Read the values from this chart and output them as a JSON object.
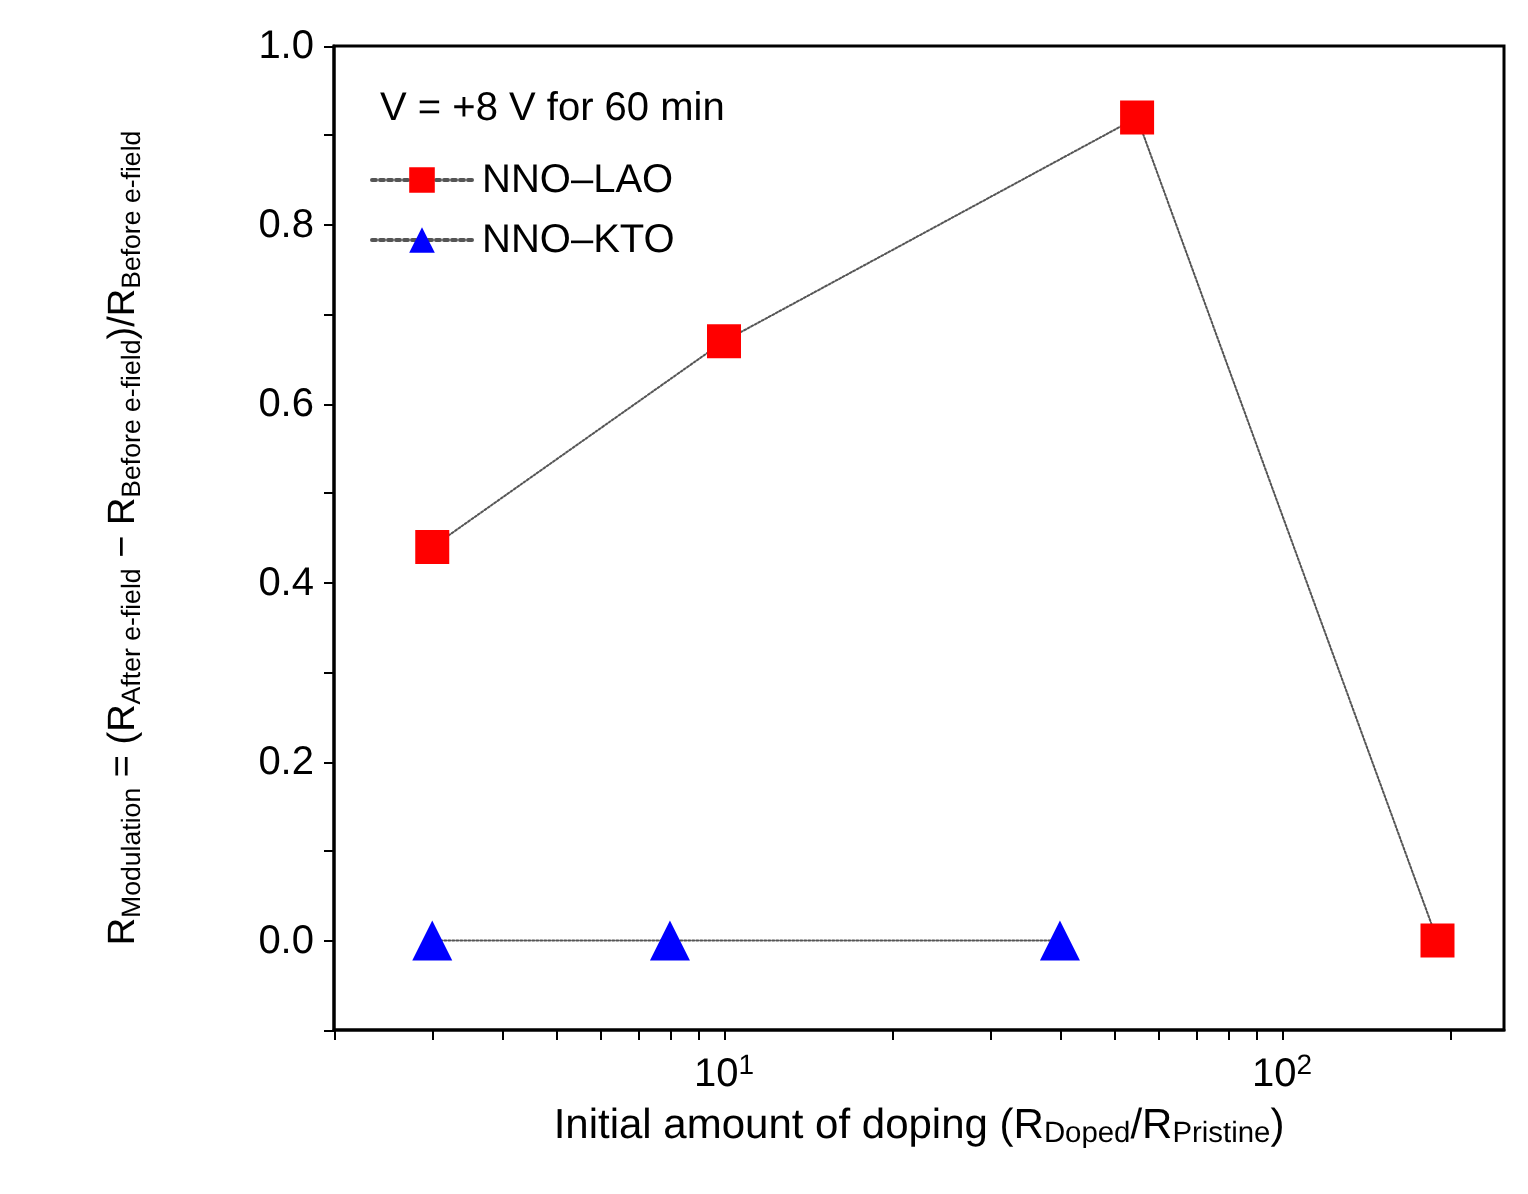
{
  "chart_data": {
    "type": "line",
    "xlabel": "Initial amount of doping (R$_{Doped}$/R$_{Pristine}$)",
    "ylabel": "R$_{Modulation}$ = (R$_{After e-field}$ − R$_{Before e-field}$)/R$_{Before e-field}$",
    "legend_title": "V = +8 V for 60 min",
    "log": "x",
    "xlim": [
      2,
      250
    ],
    "xticks": [
      {
        "value": 2,
        "label": null
      },
      {
        "value": 3,
        "label": null
      },
      {
        "value": 4,
        "label": null
      },
      {
        "value": 5,
        "label": null
      },
      {
        "value": 6,
        "label": null
      },
      {
        "value": 7,
        "label": null
      },
      {
        "value": 8,
        "label": null
      },
      {
        "value": 9,
        "label": null
      },
      {
        "value": 10,
        "label": "10$^{1}$"
      },
      {
        "value": 20,
        "label": null
      },
      {
        "value": 30,
        "label": null
      },
      {
        "value": 40,
        "label": null
      },
      {
        "value": 50,
        "label": null
      },
      {
        "value": 60,
        "label": null
      },
      {
        "value": 70,
        "label": null
      },
      {
        "value": 80,
        "label": null
      },
      {
        "value": 90,
        "label": null
      },
      {
        "value": 100,
        "label": "10$^{2}$"
      },
      {
        "value": 200,
        "label": null
      }
    ],
    "ylim": [
      -0.1,
      1.0
    ],
    "yticks": [
      {
        "value": -0.1,
        "label": null
      },
      {
        "value": 0,
        "label": "0.0"
      },
      {
        "value": 0.1,
        "label": null
      },
      {
        "value": 0.2,
        "label": "0.2"
      },
      {
        "value": 0.3,
        "label": null
      },
      {
        "value": 0.4,
        "label": "0.4"
      },
      {
        "value": 0.5,
        "label": null
      },
      {
        "value": 0.6,
        "label": "0.6"
      },
      {
        "value": 0.7,
        "label": null
      },
      {
        "value": 0.8,
        "label": "0.8"
      },
      {
        "value": 0.9,
        "label": null
      },
      {
        "value": 1.0,
        "label": "1.0"
      }
    ],
    "grid": false,
    "legend": "top left",
    "line_style": "dotted",
    "series": [
      {
        "name": "NNO–LAO",
        "color": "#ff0000",
        "marker": "square",
        "x": [
          3,
          10,
          55,
          190
        ],
        "values": [
          0.44,
          0.67,
          0.92,
          0.0
        ]
      },
      {
        "name": "NNO–KTO",
        "color": "#0000ff",
        "marker": "triangle",
        "x": [
          3,
          8,
          40
        ],
        "values": [
          0.0,
          0.0,
          0.0
        ]
      }
    ]
  }
}
